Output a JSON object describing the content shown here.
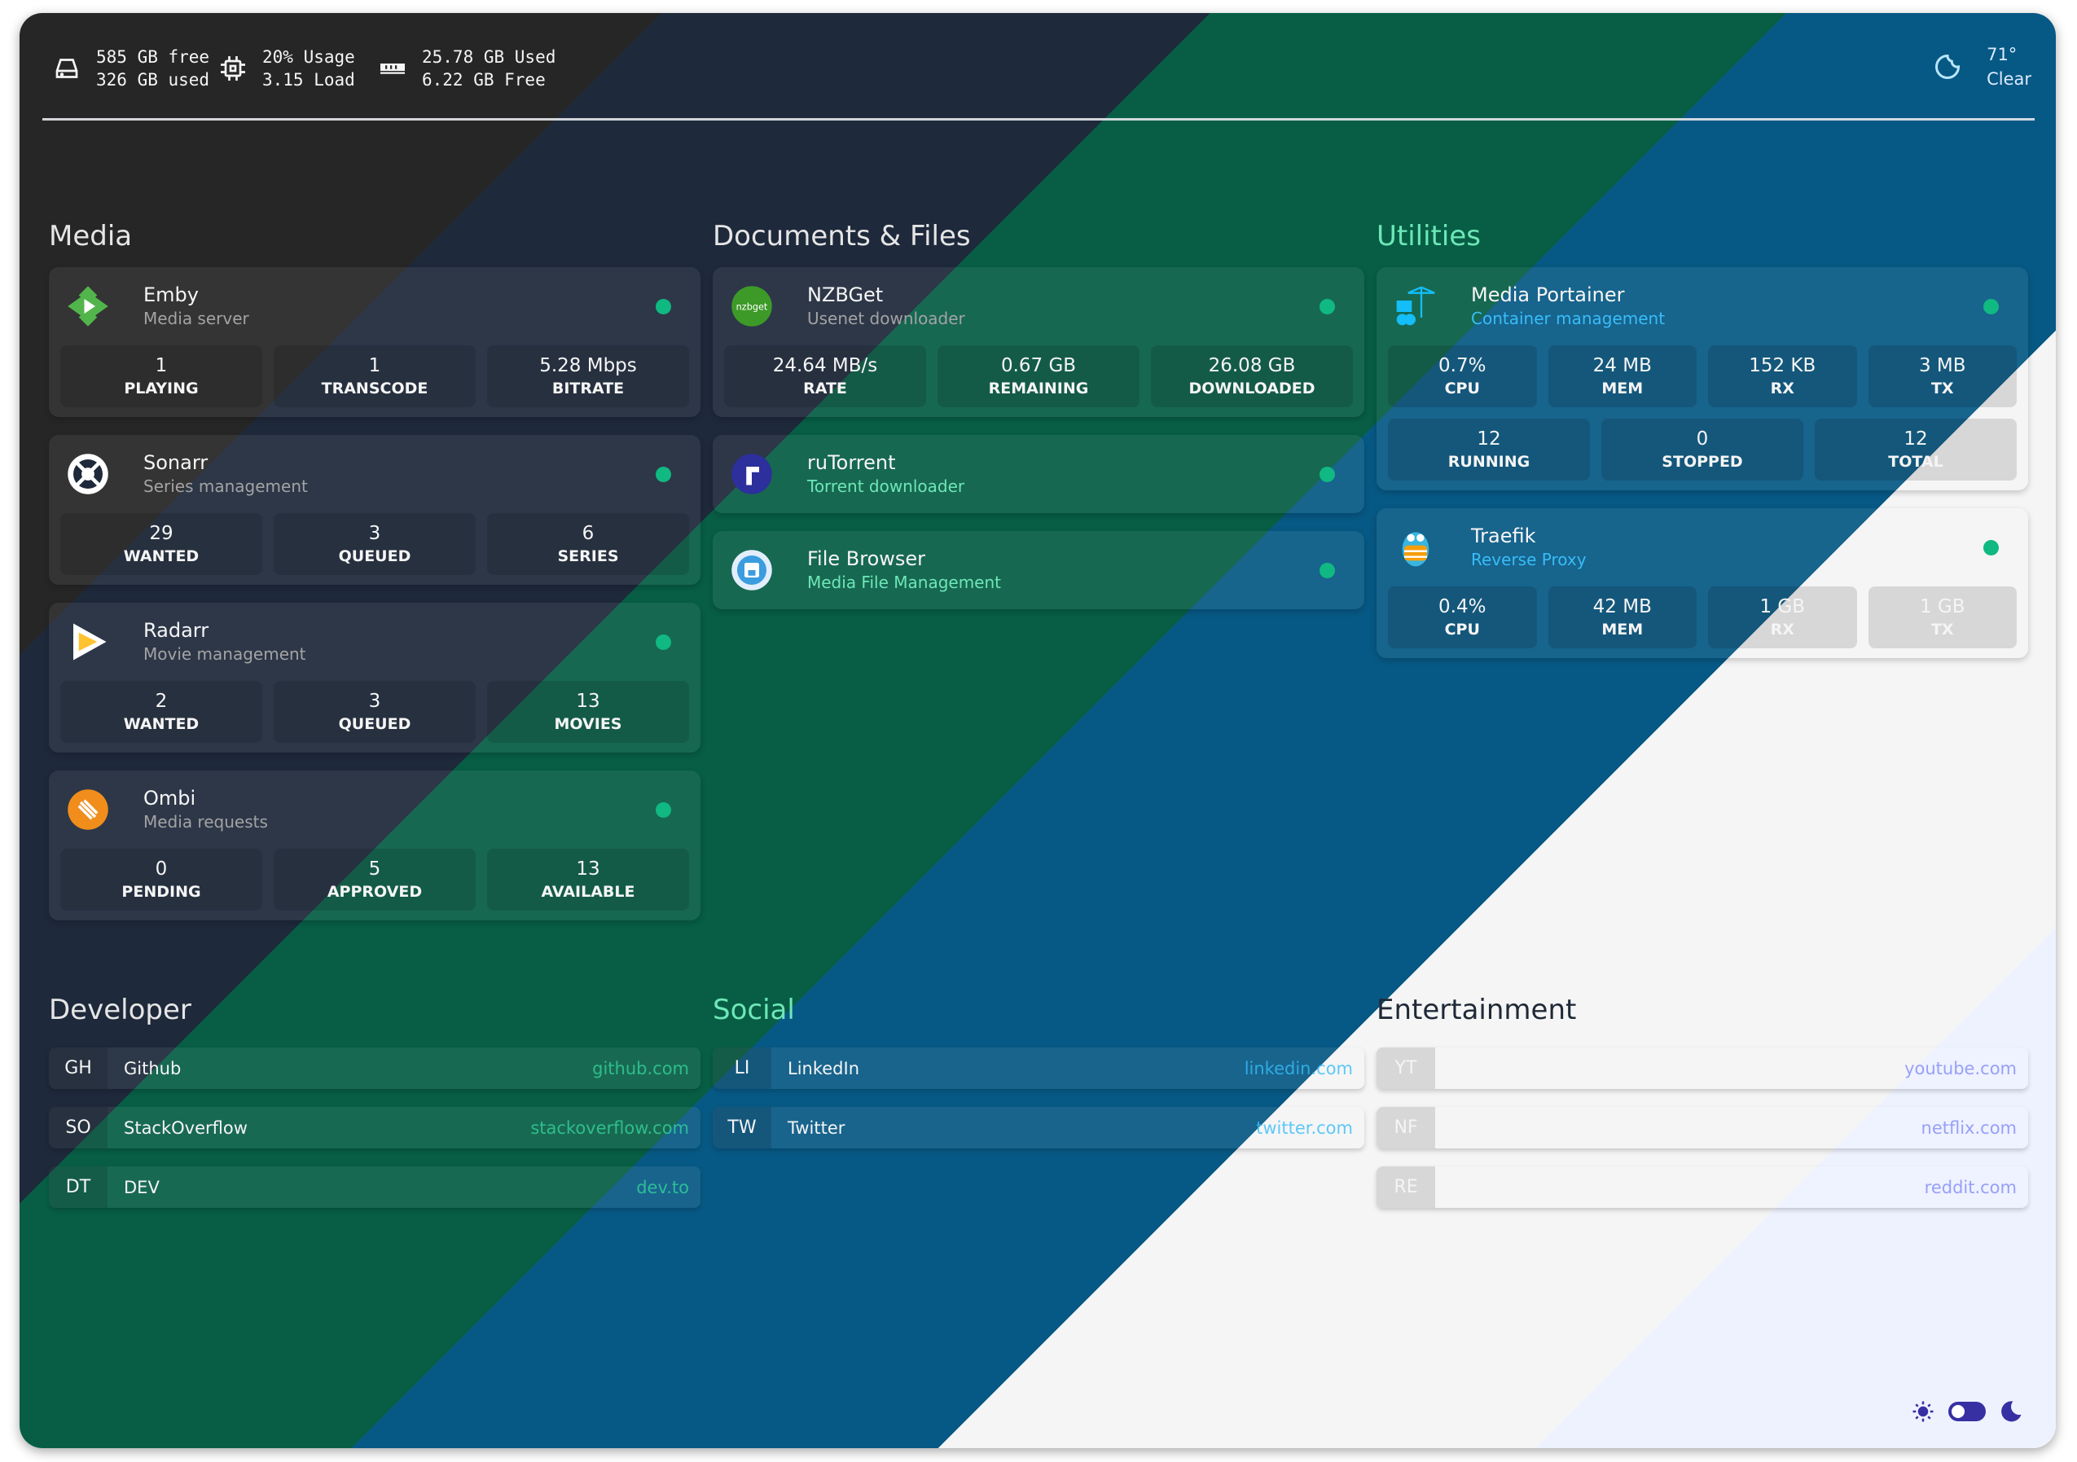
{
  "header": {
    "disk": {
      "icon": "hard-drive-icon",
      "line1": "585 GB free",
      "line2": "326 GB used"
    },
    "cpu": {
      "icon": "cpu-icon",
      "line1": "20% Usage",
      "line2": "3.15 Load"
    },
    "memory": {
      "icon": "memory-icon",
      "line1": "25.78 GB Used",
      "line2": "6.22 GB Free"
    },
    "weather": {
      "icon": "moon-icon",
      "temp": "71°",
      "condition": "Clear"
    }
  },
  "colors": {
    "background_bands": [
      "#262626",
      "#1e293b",
      "#075e45",
      "#075985",
      "#f5f5f5",
      "#eef2ff"
    ],
    "status_ok": "#10b981",
    "theme_accent": "#3730a3"
  },
  "services": [
    {
      "title": "Media",
      "title_color": "#e5e5e5",
      "cards": [
        {
          "name": "Emby",
          "subtitle": "Media server",
          "icon": "emby-icon",
          "sub_color": "#a3a3a3",
          "stats": [
            [
              {
                "value": "1",
                "label": "PLAYING"
              },
              {
                "value": "1",
                "label": "TRANSCODE"
              },
              {
                "value": "5.28 Mbps",
                "label": "BITRATE"
              }
            ]
          ]
        },
        {
          "name": "Sonarr",
          "subtitle": "Series management",
          "icon": "sonarr-icon",
          "sub_color": "#a3a3a3",
          "stats": [
            [
              {
                "value": "29",
                "label": "WANTED"
              },
              {
                "value": "3",
                "label": "QUEUED"
              },
              {
                "value": "6",
                "label": "SERIES"
              }
            ]
          ]
        },
        {
          "name": "Radarr",
          "subtitle": "Movie management",
          "icon": "radarr-icon",
          "sub_color": "#a3a3a3",
          "stats": [
            [
              {
                "value": "2",
                "label": "WANTED"
              },
              {
                "value": "3",
                "label": "QUEUED"
              },
              {
                "value": "13",
                "label": "MOVIES"
              }
            ]
          ]
        },
        {
          "name": "Ombi",
          "subtitle": "Media requests",
          "icon": "ombi-icon",
          "sub_color": "#a3a3a3",
          "stats": [
            [
              {
                "value": "0",
                "label": "PENDING"
              },
              {
                "value": "5",
                "label": "APPROVED"
              },
              {
                "value": "13",
                "label": "AVAILABLE"
              }
            ]
          ]
        }
      ]
    },
    {
      "title": "Documents & Files",
      "title_color": "#e5e5e5",
      "cards": [
        {
          "name": "NZBGet",
          "subtitle": "Usenet downloader",
          "icon": "nzbget-icon",
          "sub_color": "#a3a3a3",
          "stats": [
            [
              {
                "value": "24.64 MB/s",
                "label": "RATE"
              },
              {
                "value": "0.67 GB",
                "label": "REMAINING"
              },
              {
                "value": "26.08 GB",
                "label": "DOWNLOADED"
              }
            ]
          ]
        },
        {
          "name": "ruTorrent",
          "subtitle": "Torrent downloader",
          "icon": "rutorrent-icon",
          "sub_color": "#6ee7b7",
          "stats": []
        },
        {
          "name": "File Browser",
          "subtitle": "Media File Management",
          "icon": "file-browser-icon",
          "sub_color": "#6ee7b7",
          "stats": []
        }
      ]
    },
    {
      "title": "Utilities",
      "title_color": "#6ee7b7",
      "cards": [
        {
          "name": "Media Portainer",
          "subtitle": "Container management",
          "icon": "portainer-icon",
          "sub_color": "#38bdf8",
          "stats": [
            [
              {
                "value": "0.7%",
                "label": "CPU"
              },
              {
                "value": "24 MB",
                "label": "MEM"
              },
              {
                "value": "152 KB",
                "label": "RX"
              },
              {
                "value": "3 MB",
                "label": "TX"
              }
            ],
            [
              {
                "value": "12",
                "label": "RUNNING"
              },
              {
                "value": "0",
                "label": "STOPPED"
              },
              {
                "value": "12",
                "label": "TOTAL"
              }
            ]
          ]
        },
        {
          "name": "Traefik",
          "subtitle": "Reverse Proxy",
          "icon": "traefik-icon",
          "sub_color": "#38bdf8",
          "stats": [
            [
              {
                "value": "0.4%",
                "label": "CPU"
              },
              {
                "value": "42 MB",
                "label": "MEM"
              },
              {
                "value": "1 GB",
                "label": "RX"
              },
              {
                "value": "1 GB",
                "label": "TX"
              }
            ]
          ]
        }
      ]
    }
  ],
  "bookmarks": [
    {
      "title": "Developer",
      "title_color": "#e5e5e5",
      "url_color": "#34d399",
      "items": [
        {
          "abbr": "GH",
          "name": "Github",
          "url": "github.com"
        },
        {
          "abbr": "SO",
          "name": "StackOverflow",
          "url": "stackoverflow.com"
        },
        {
          "abbr": "DT",
          "name": "DEV",
          "url": "dev.to"
        }
      ]
    },
    {
      "title": "Social",
      "title_color": "#6ee7b7",
      "url_color": "#38bdf8",
      "items": [
        {
          "abbr": "LI",
          "name": "LinkedIn",
          "url": "linkedin.com"
        },
        {
          "abbr": "TW",
          "name": "Twitter",
          "url": "twitter.com"
        }
      ]
    },
    {
      "title": "Entertainment",
      "title_color": "#1f2937",
      "url_color": "#818cf8",
      "items": [
        {
          "abbr": "YT",
          "name": "YouTube",
          "url": "youtube.com"
        },
        {
          "abbr": "NF",
          "name": "Netflix",
          "url": "netflix.com"
        },
        {
          "abbr": "RE",
          "name": "Reddit",
          "url": "reddit.com"
        }
      ]
    }
  ],
  "theme_switch": {
    "light_icon": "sun-icon",
    "dark_icon": "moon-icon",
    "state": "dark"
  }
}
